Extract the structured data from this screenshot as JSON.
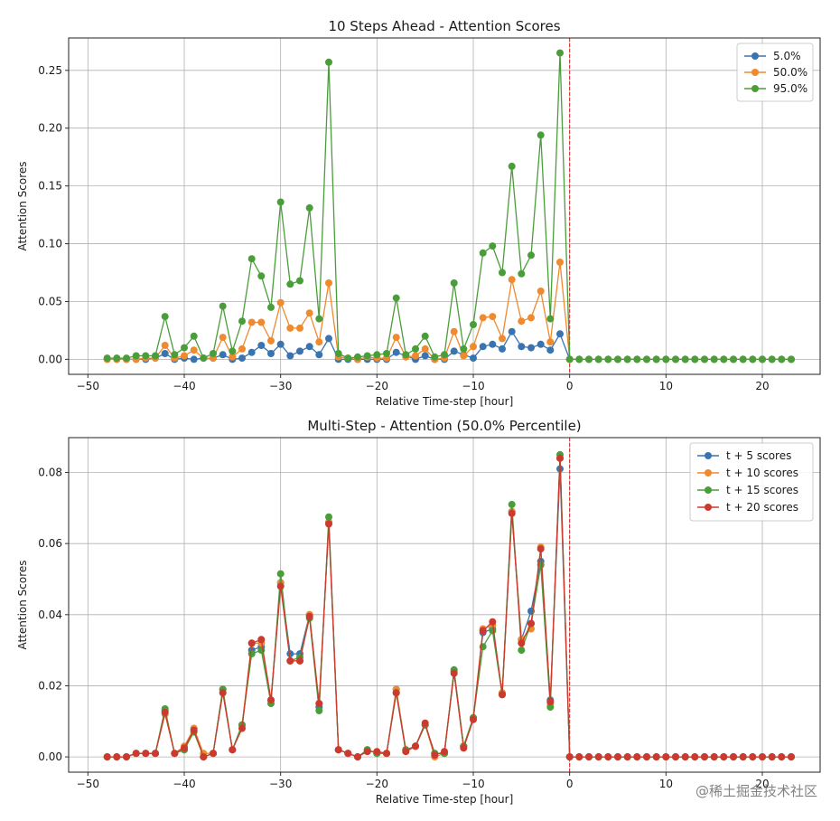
{
  "watermark": "@稀土掘金技术社区",
  "chart_data": [
    {
      "type": "line",
      "title": "10 Steps Ahead - Attention Scores",
      "xlabel": "Relative Time-step [hour]",
      "ylabel": "Attention Scores",
      "xlim": [
        -52,
        26
      ],
      "ylim": [
        -0.013,
        0.278
      ],
      "xticks": [
        -50,
        -40,
        -30,
        -20,
        -10,
        0,
        10,
        20
      ],
      "yticks": [
        0.0,
        0.05,
        0.1,
        0.15,
        0.2,
        0.25
      ],
      "ytick_format": "2",
      "grid": true,
      "vline_x": 0,
      "vline_color": "#d62728",
      "legend_position": "top-right",
      "x_start": -48,
      "series": [
        {
          "name": "5.0%",
          "color": "#3a74b0",
          "values": [
            0.0,
            0.0,
            0.0,
            0.0,
            0.0,
            0.001,
            0.005,
            0.0,
            0.001,
            0.0,
            0.001,
            0.001,
            0.004,
            0.0,
            0.001,
            0.006,
            0.012,
            0.005,
            0.013,
            0.003,
            0.007,
            0.011,
            0.004,
            0.018,
            0.0,
            0.0,
            0.0,
            0.0,
            0.0,
            0.0,
            0.006,
            0.003,
            0.0,
            0.003,
            0.0,
            0.0,
            0.007,
            0.004,
            0.001,
            0.011,
            0.013,
            0.009,
            0.024,
            0.011,
            0.01,
            0.013,
            0.008,
            0.022,
            0.0,
            0.0,
            0.0,
            0.0,
            0.0,
            0.0,
            0.0,
            0.0,
            0.0,
            0.0,
            0.0,
            0.0,
            0.0,
            0.0,
            0.0,
            0.0,
            0.0,
            0.0,
            0.0,
            0.0,
            0.0,
            0.0,
            0.0,
            0.0
          ]
        },
        {
          "name": "50.0%",
          "color": "#ef8a2f",
          "values": [
            0.0,
            0.0,
            0.0,
            0.0,
            0.001,
            0.001,
            0.012,
            0.001,
            0.003,
            0.008,
            0.001,
            0.001,
            0.019,
            0.002,
            0.009,
            0.032,
            0.032,
            0.016,
            0.049,
            0.027,
            0.027,
            0.04,
            0.015,
            0.066,
            0.002,
            0.001,
            0.0,
            0.002,
            0.001,
            0.001,
            0.019,
            0.002,
            0.003,
            0.009,
            0.0,
            0.001,
            0.024,
            0.003,
            0.011,
            0.036,
            0.037,
            0.018,
            0.069,
            0.033,
            0.036,
            0.059,
            0.015,
            0.084,
            0.0,
            0.0,
            0.0,
            0.0,
            0.0,
            0.0,
            0.0,
            0.0,
            0.0,
            0.0,
            0.0,
            0.0,
            0.0,
            0.0,
            0.0,
            0.0,
            0.0,
            0.0,
            0.0,
            0.0,
            0.0,
            0.0,
            0.0,
            0.0
          ]
        },
        {
          "name": "95.0%",
          "color": "#4a9e3a",
          "values": [
            0.001,
            0.001,
            0.001,
            0.003,
            0.003,
            0.003,
            0.037,
            0.004,
            0.01,
            0.02,
            0.001,
            0.005,
            0.046,
            0.007,
            0.033,
            0.087,
            0.072,
            0.045,
            0.136,
            0.065,
            0.068,
            0.131,
            0.035,
            0.257,
            0.005,
            0.001,
            0.002,
            0.003,
            0.004,
            0.005,
            0.053,
            0.004,
            0.009,
            0.02,
            0.002,
            0.004,
            0.066,
            0.009,
            0.03,
            0.092,
            0.098,
            0.075,
            0.167,
            0.074,
            0.09,
            0.194,
            0.035,
            0.265,
            0.0,
            0.0,
            0.0,
            0.0,
            0.0,
            0.0,
            0.0,
            0.0,
            0.0,
            0.0,
            0.0,
            0.0,
            0.0,
            0.0,
            0.0,
            0.0,
            0.0,
            0.0,
            0.0,
            0.0,
            0.0,
            0.0,
            0.0,
            0.0
          ]
        }
      ]
    },
    {
      "type": "line",
      "title": "Multi-Step - Attention (50.0% Percentile)",
      "xlabel": "Relative Time-step [hour]",
      "ylabel": "Attention Scores",
      "xlim": [
        -52,
        26
      ],
      "ylim": [
        -0.0043,
        0.0898
      ],
      "xticks": [
        -50,
        -40,
        -30,
        -20,
        -10,
        0,
        10,
        20
      ],
      "yticks": [
        0.0,
        0.02,
        0.04,
        0.06,
        0.08
      ],
      "ytick_format": "2",
      "grid": true,
      "vline_x": 0,
      "vline_color": "#d62728",
      "legend_position": "top-right",
      "x_start": -48,
      "series": [
        {
          "name": "t + 5 scores",
          "color": "#3a74b0",
          "values": [
            0.0,
            0.0,
            0.0,
            0.001,
            0.001,
            0.001,
            0.013,
            0.001,
            0.002,
            0.008,
            0.0,
            0.001,
            0.019,
            0.002,
            0.009,
            0.03,
            0.031,
            0.016,
            0.049,
            0.029,
            0.029,
            0.04,
            0.014,
            0.066,
            0.002,
            0.001,
            0.0,
            0.002,
            0.001,
            0.001,
            0.019,
            0.002,
            0.003,
            0.009,
            0.001,
            0.001,
            0.024,
            0.003,
            0.011,
            0.035,
            0.036,
            0.018,
            0.069,
            0.033,
            0.041,
            0.055,
            0.016,
            0.081,
            0.0,
            0.0,
            0.0,
            0.0,
            0.0,
            0.0,
            0.0,
            0.0,
            0.0,
            0.0,
            0.0,
            0.0,
            0.0,
            0.0,
            0.0,
            0.0,
            0.0,
            0.0,
            0.0,
            0.0,
            0.0,
            0.0,
            0.0,
            0.0
          ]
        },
        {
          "name": "t + 10 scores",
          "color": "#ef8a2f",
          "values": [
            0.0,
            0.0,
            0.0,
            0.001,
            0.001,
            0.001,
            0.012,
            0.001,
            0.003,
            0.008,
            0.001,
            0.001,
            0.019,
            0.002,
            0.009,
            0.032,
            0.032,
            0.016,
            0.049,
            0.027,
            0.027,
            0.04,
            0.015,
            0.066,
            0.002,
            0.001,
            0.0,
            0.002,
            0.001,
            0.001,
            0.019,
            0.002,
            0.003,
            0.009,
            0.0,
            0.001,
            0.024,
            0.003,
            0.011,
            0.036,
            0.037,
            0.018,
            0.069,
            0.033,
            0.036,
            0.059,
            0.015,
            0.084,
            0.0,
            0.0,
            0.0,
            0.0,
            0.0,
            0.0,
            0.0,
            0.0,
            0.0,
            0.0,
            0.0,
            0.0,
            0.0,
            0.0,
            0.0,
            0.0,
            0.0,
            0.0,
            0.0,
            0.0,
            0.0,
            0.0,
            0.0,
            0.0
          ]
        },
        {
          "name": "t + 15 scores",
          "color": "#4a9e3a",
          "values": [
            0.0,
            0.0,
            0.0,
            0.001,
            0.001,
            0.001,
            0.0135,
            0.001,
            0.002,
            0.007,
            0.0,
            0.001,
            0.019,
            0.002,
            0.009,
            0.029,
            0.03,
            0.015,
            0.0515,
            0.027,
            0.028,
            0.039,
            0.013,
            0.0675,
            0.002,
            0.001,
            0.0,
            0.002,
            0.001,
            0.001,
            0.018,
            0.002,
            0.003,
            0.009,
            0.001,
            0.001,
            0.0245,
            0.003,
            0.011,
            0.031,
            0.0355,
            0.0175,
            0.071,
            0.03,
            0.0375,
            0.054,
            0.014,
            0.085,
            0.0,
            0.0,
            0.0,
            0.0,
            0.0,
            0.0,
            0.0,
            0.0,
            0.0,
            0.0,
            0.0,
            0.0,
            0.0,
            0.0,
            0.0,
            0.0,
            0.0,
            0.0,
            0.0,
            0.0,
            0.0,
            0.0,
            0.0,
            0.0
          ]
        },
        {
          "name": "t + 20 scores",
          "color": "#cc3a2f",
          "values": [
            0.0,
            0.0,
            0.0,
            0.001,
            0.001,
            0.001,
            0.0125,
            0.001,
            0.0025,
            0.0075,
            0.0,
            0.001,
            0.018,
            0.002,
            0.008,
            0.032,
            0.033,
            0.016,
            0.048,
            0.027,
            0.027,
            0.0395,
            0.015,
            0.0655,
            0.002,
            0.001,
            0.0,
            0.0015,
            0.0015,
            0.001,
            0.018,
            0.0015,
            0.003,
            0.0095,
            0.0005,
            0.0015,
            0.0235,
            0.0025,
            0.0105,
            0.0355,
            0.038,
            0.0175,
            0.0685,
            0.032,
            0.0375,
            0.0585,
            0.0155,
            0.084,
            0.0,
            0.0,
            0.0,
            0.0,
            0.0,
            0.0,
            0.0,
            0.0,
            0.0,
            0.0,
            0.0,
            0.0,
            0.0,
            0.0,
            0.0,
            0.0,
            0.0,
            0.0,
            0.0,
            0.0,
            0.0,
            0.0,
            0.0,
            0.0
          ]
        }
      ]
    }
  ]
}
